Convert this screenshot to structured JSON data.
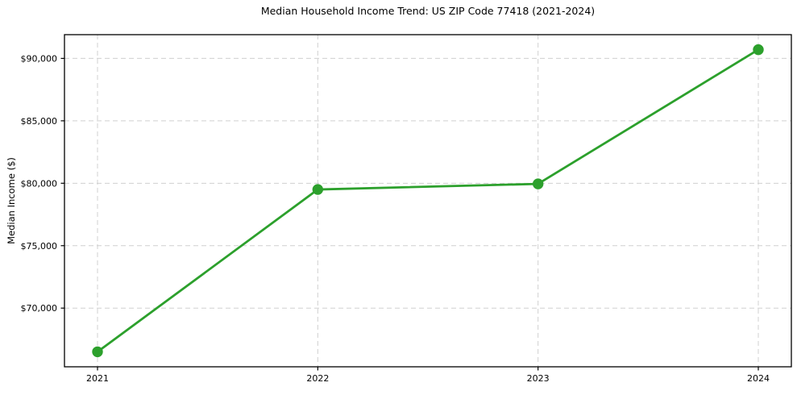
{
  "chart_data": {
    "type": "line",
    "title": "Median Household Income Trend: US ZIP Code 77418 (2021-2024)",
    "xlabel": "",
    "ylabel": "Median Income ($)",
    "x": [
      2021,
      2022,
      2023,
      2024
    ],
    "xtick_labels": [
      "2021",
      "2022",
      "2023",
      "2024"
    ],
    "series": [
      {
        "name": "Median household income",
        "values": [
          66500,
          79500,
          79950,
          90700
        ],
        "color": "#2ca02c",
        "marker": "circle",
        "marker_size": 6.7
      }
    ],
    "yticks": [
      {
        "value": 70000,
        "label": "$70,000"
      },
      {
        "value": 75000,
        "label": "$75,000"
      },
      {
        "value": 80000,
        "label": "$80,000"
      },
      {
        "value": 85000,
        "label": "$85,000"
      },
      {
        "value": 90000,
        "label": "$90,000"
      }
    ],
    "xlim": [
      2020.85,
      2024.15
    ],
    "ylim": [
      65300,
      91900
    ],
    "grid": true,
    "grid_style": "dashed",
    "legend_position": "none",
    "plot_background": "#ffffff"
  }
}
